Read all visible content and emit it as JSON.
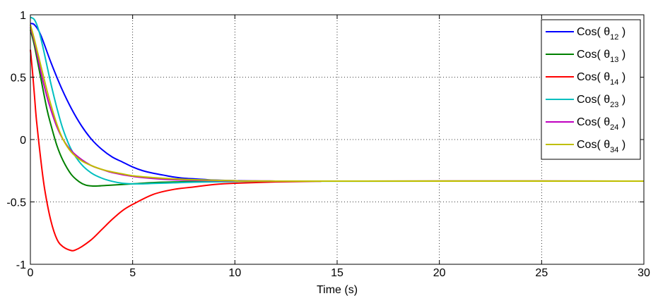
{
  "chart_data": {
    "type": "line",
    "title": "",
    "xlabel": "Time (s)",
    "ylabel": "",
    "xlim": [
      0,
      30
    ],
    "ylim": [
      -1,
      1
    ],
    "xticks": [
      0,
      5,
      10,
      15,
      20,
      25,
      30
    ],
    "yticks": [
      -1,
      -0.5,
      0,
      0.5,
      1
    ],
    "xtick_labels": [
      "0",
      "5",
      "10",
      "15",
      "20",
      "25",
      "30"
    ],
    "ytick_labels": [
      "-1",
      "-0.5",
      "0",
      "0.5",
      "1"
    ],
    "grid": true,
    "legend_position": "top-right",
    "series": [
      {
        "name": "Cos( θ12 )",
        "base": "Cos( θ",
        "sub": "12",
        "tail": " )",
        "color": "#0000ff",
        "x": [
          0,
          0.2,
          0.5,
          1,
          1.5,
          2,
          2.5,
          3,
          3.5,
          4,
          4.5,
          5,
          5.5,
          6,
          6.5,
          7,
          7.5,
          8,
          8.5,
          9,
          10,
          11,
          12,
          14,
          30
        ],
        "y": [
          0.93,
          0.92,
          0.84,
          0.62,
          0.42,
          0.25,
          0.11,
          0.0,
          -0.08,
          -0.14,
          -0.18,
          -0.22,
          -0.25,
          -0.27,
          -0.285,
          -0.3,
          -0.31,
          -0.315,
          -0.32,
          -0.325,
          -0.33,
          -0.332,
          -0.333,
          -0.333,
          -0.333
        ]
      },
      {
        "name": "Cos( θ13 )",
        "base": "Cos( θ",
        "sub": "13",
        "tail": " )",
        "color": "#008000",
        "x": [
          0,
          0.2,
          0.5,
          0.8,
          1,
          1.3,
          1.6,
          2,
          2.4,
          2.7,
          3,
          3.3,
          3.7,
          4,
          5,
          6,
          7,
          8,
          10,
          12,
          14,
          30
        ],
        "y": [
          0.88,
          0.75,
          0.5,
          0.25,
          0.12,
          -0.05,
          -0.17,
          -0.28,
          -0.34,
          -0.365,
          -0.372,
          -0.372,
          -0.368,
          -0.365,
          -0.355,
          -0.345,
          -0.34,
          -0.337,
          -0.335,
          -0.334,
          -0.333,
          -0.333
        ]
      },
      {
        "name": "Cos( θ14 )",
        "base": "Cos( θ",
        "sub": "14",
        "tail": " )",
        "color": "#ff0000",
        "x": [
          0,
          0.1,
          0.2,
          0.3,
          0.5,
          0.7,
          1,
          1.3,
          1.6,
          2,
          2.2,
          2.5,
          3,
          3.5,
          4,
          4.5,
          5,
          6,
          7,
          8,
          9,
          10,
          12,
          14,
          16,
          30
        ],
        "y": [
          0.72,
          0.55,
          0.35,
          0.15,
          -0.15,
          -0.4,
          -0.65,
          -0.8,
          -0.86,
          -0.89,
          -0.885,
          -0.86,
          -0.8,
          -0.72,
          -0.64,
          -0.57,
          -0.52,
          -0.44,
          -0.4,
          -0.38,
          -0.36,
          -0.35,
          -0.34,
          -0.335,
          -0.333,
          -0.333
        ]
      },
      {
        "name": "Cos( θ23 )",
        "base": "Cos( θ",
        "sub": "23",
        "tail": " )",
        "color": "#00bfbf",
        "x": [
          0,
          0.2,
          0.4,
          0.6,
          0.8,
          1,
          1.3,
          1.6,
          2,
          2.5,
          3,
          3.5,
          4,
          4.5,
          5,
          5.5,
          6,
          7,
          8,
          10,
          12,
          30
        ],
        "y": [
          0.98,
          0.96,
          0.88,
          0.75,
          0.6,
          0.45,
          0.25,
          0.08,
          -0.08,
          -0.2,
          -0.27,
          -0.31,
          -0.335,
          -0.35,
          -0.355,
          -0.355,
          -0.352,
          -0.347,
          -0.342,
          -0.337,
          -0.334,
          -0.333
        ]
      },
      {
        "name": "Cos( θ24 )",
        "base": "Cos( θ",
        "sub": "24",
        "tail": " )",
        "color": "#bf00bf",
        "x": [
          0,
          0.2,
          0.5,
          0.8,
          1,
          1.3,
          1.6,
          2,
          2.5,
          3,
          3.5,
          4,
          5,
          6,
          7,
          8,
          10,
          12,
          30
        ],
        "y": [
          0.9,
          0.78,
          0.55,
          0.35,
          0.24,
          0.1,
          0.0,
          -0.09,
          -0.16,
          -0.21,
          -0.24,
          -0.265,
          -0.295,
          -0.312,
          -0.322,
          -0.327,
          -0.332,
          -0.333,
          -0.333
        ]
      },
      {
        "name": "Cos( θ34 )",
        "base": "Cos( θ",
        "sub": "34",
        "tail": " )",
        "color": "#bfbf00",
        "x": [
          0,
          0.2,
          0.5,
          0.8,
          1,
          1.3,
          1.6,
          2,
          2.5,
          3,
          3.5,
          4,
          4.5,
          5,
          6,
          7,
          8,
          10,
          12,
          30
        ],
        "y": [
          0.92,
          0.8,
          0.6,
          0.4,
          0.28,
          0.12,
          0.0,
          -0.1,
          -0.17,
          -0.21,
          -0.24,
          -0.26,
          -0.275,
          -0.29,
          -0.305,
          -0.315,
          -0.322,
          -0.33,
          -0.333,
          -0.333
        ]
      }
    ]
  }
}
